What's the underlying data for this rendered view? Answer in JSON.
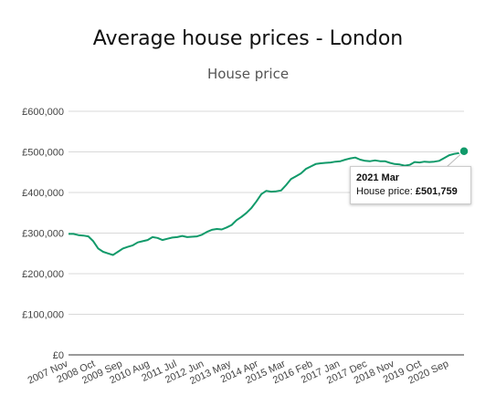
{
  "chart_data": {
    "type": "line",
    "title": "Average house prices - London",
    "subtitle": "House price",
    "xlabel": "",
    "ylabel": "",
    "ylim": [
      0,
      600000
    ],
    "yticks": [
      "£0",
      "£100,000",
      "£200,000",
      "£300,000",
      "£400,000",
      "£500,000",
      "£600,000"
    ],
    "xticks": [
      "2007 Nov",
      "2008 Oct",
      "2009 Sep",
      "2010 Aug",
      "2011 Jul",
      "2012 Jun",
      "2013 May",
      "2014 Apr",
      "2015 Mar",
      "2016 Feb",
      "2017 Jan",
      "2017 Dec",
      "2018 Nov",
      "2019 Oct",
      "2020 Sep"
    ],
    "grid": true,
    "series": [
      {
        "name": "House price",
        "color": "#119a6a",
        "x": [
          "2007 Nov",
          "2008 Jan",
          "2008 Mar",
          "2008 May",
          "2008 Jul",
          "2008 Sep",
          "2008 Nov",
          "2009 Jan",
          "2009 Mar",
          "2009 May",
          "2009 Jul",
          "2009 Sep",
          "2009 Nov",
          "2010 Jan",
          "2010 Mar",
          "2010 May",
          "2010 Jul",
          "2010 Sep",
          "2010 Nov",
          "2011 Jan",
          "2011 Mar",
          "2011 May",
          "2011 Jul",
          "2011 Sep",
          "2011 Nov",
          "2012 Jan",
          "2012 Mar",
          "2012 May",
          "2012 Jul",
          "2012 Sep",
          "2012 Nov",
          "2013 Jan",
          "2013 Mar",
          "2013 May",
          "2013 Jul",
          "2013 Sep",
          "2013 Nov",
          "2014 Jan",
          "2014 Mar",
          "2014 May",
          "2014 Jul",
          "2014 Sep",
          "2014 Nov",
          "2015 Jan",
          "2015 Mar",
          "2015 May",
          "2015 Jul",
          "2015 Sep",
          "2015 Nov",
          "2016 Jan",
          "2016 Mar",
          "2016 May",
          "2016 Jul",
          "2016 Sep",
          "2016 Nov",
          "2017 Jan",
          "2017 Mar",
          "2017 May",
          "2017 Jul",
          "2017 Sep",
          "2017 Nov",
          "2018 Jan",
          "2018 Mar",
          "2018 May",
          "2018 Jul",
          "2018 Sep",
          "2018 Nov",
          "2019 Jan",
          "2019 Mar",
          "2019 May",
          "2019 Jul",
          "2019 Sep",
          "2019 Nov",
          "2020 Jan",
          "2020 Mar",
          "2020 May",
          "2020 Jul",
          "2020 Sep",
          "2020 Nov",
          "2021 Jan",
          "2021 Mar"
        ],
        "values": [
          298000,
          298000,
          295000,
          294000,
          292000,
          280000,
          262000,
          254000,
          250000,
          246000,
          254000,
          262000,
          266000,
          270000,
          277000,
          280000,
          283000,
          290000,
          288000,
          283000,
          286000,
          289000,
          290000,
          293000,
          290000,
          291000,
          292000,
          296000,
          303000,
          308000,
          310000,
          309000,
          314000,
          320000,
          332000,
          340000,
          350000,
          362000,
          378000,
          396000,
          404000,
          402000,
          403000,
          405000,
          418000,
          433000,
          440000,
          447000,
          458000,
          464000,
          470000,
          472000,
          473000,
          474000,
          476000,
          477000,
          481000,
          484000,
          486000,
          481000,
          478000,
          477000,
          479000,
          477000,
          477000,
          473000,
          470000,
          469000,
          466000,
          468000,
          475000,
          474000,
          476000,
          475000,
          476000,
          478000,
          485000,
          492000,
          495000,
          497000,
          501759
        ]
      }
    ],
    "tooltip": {
      "date": "2021 Mar",
      "label": "House price:",
      "value": "£501,759"
    }
  }
}
